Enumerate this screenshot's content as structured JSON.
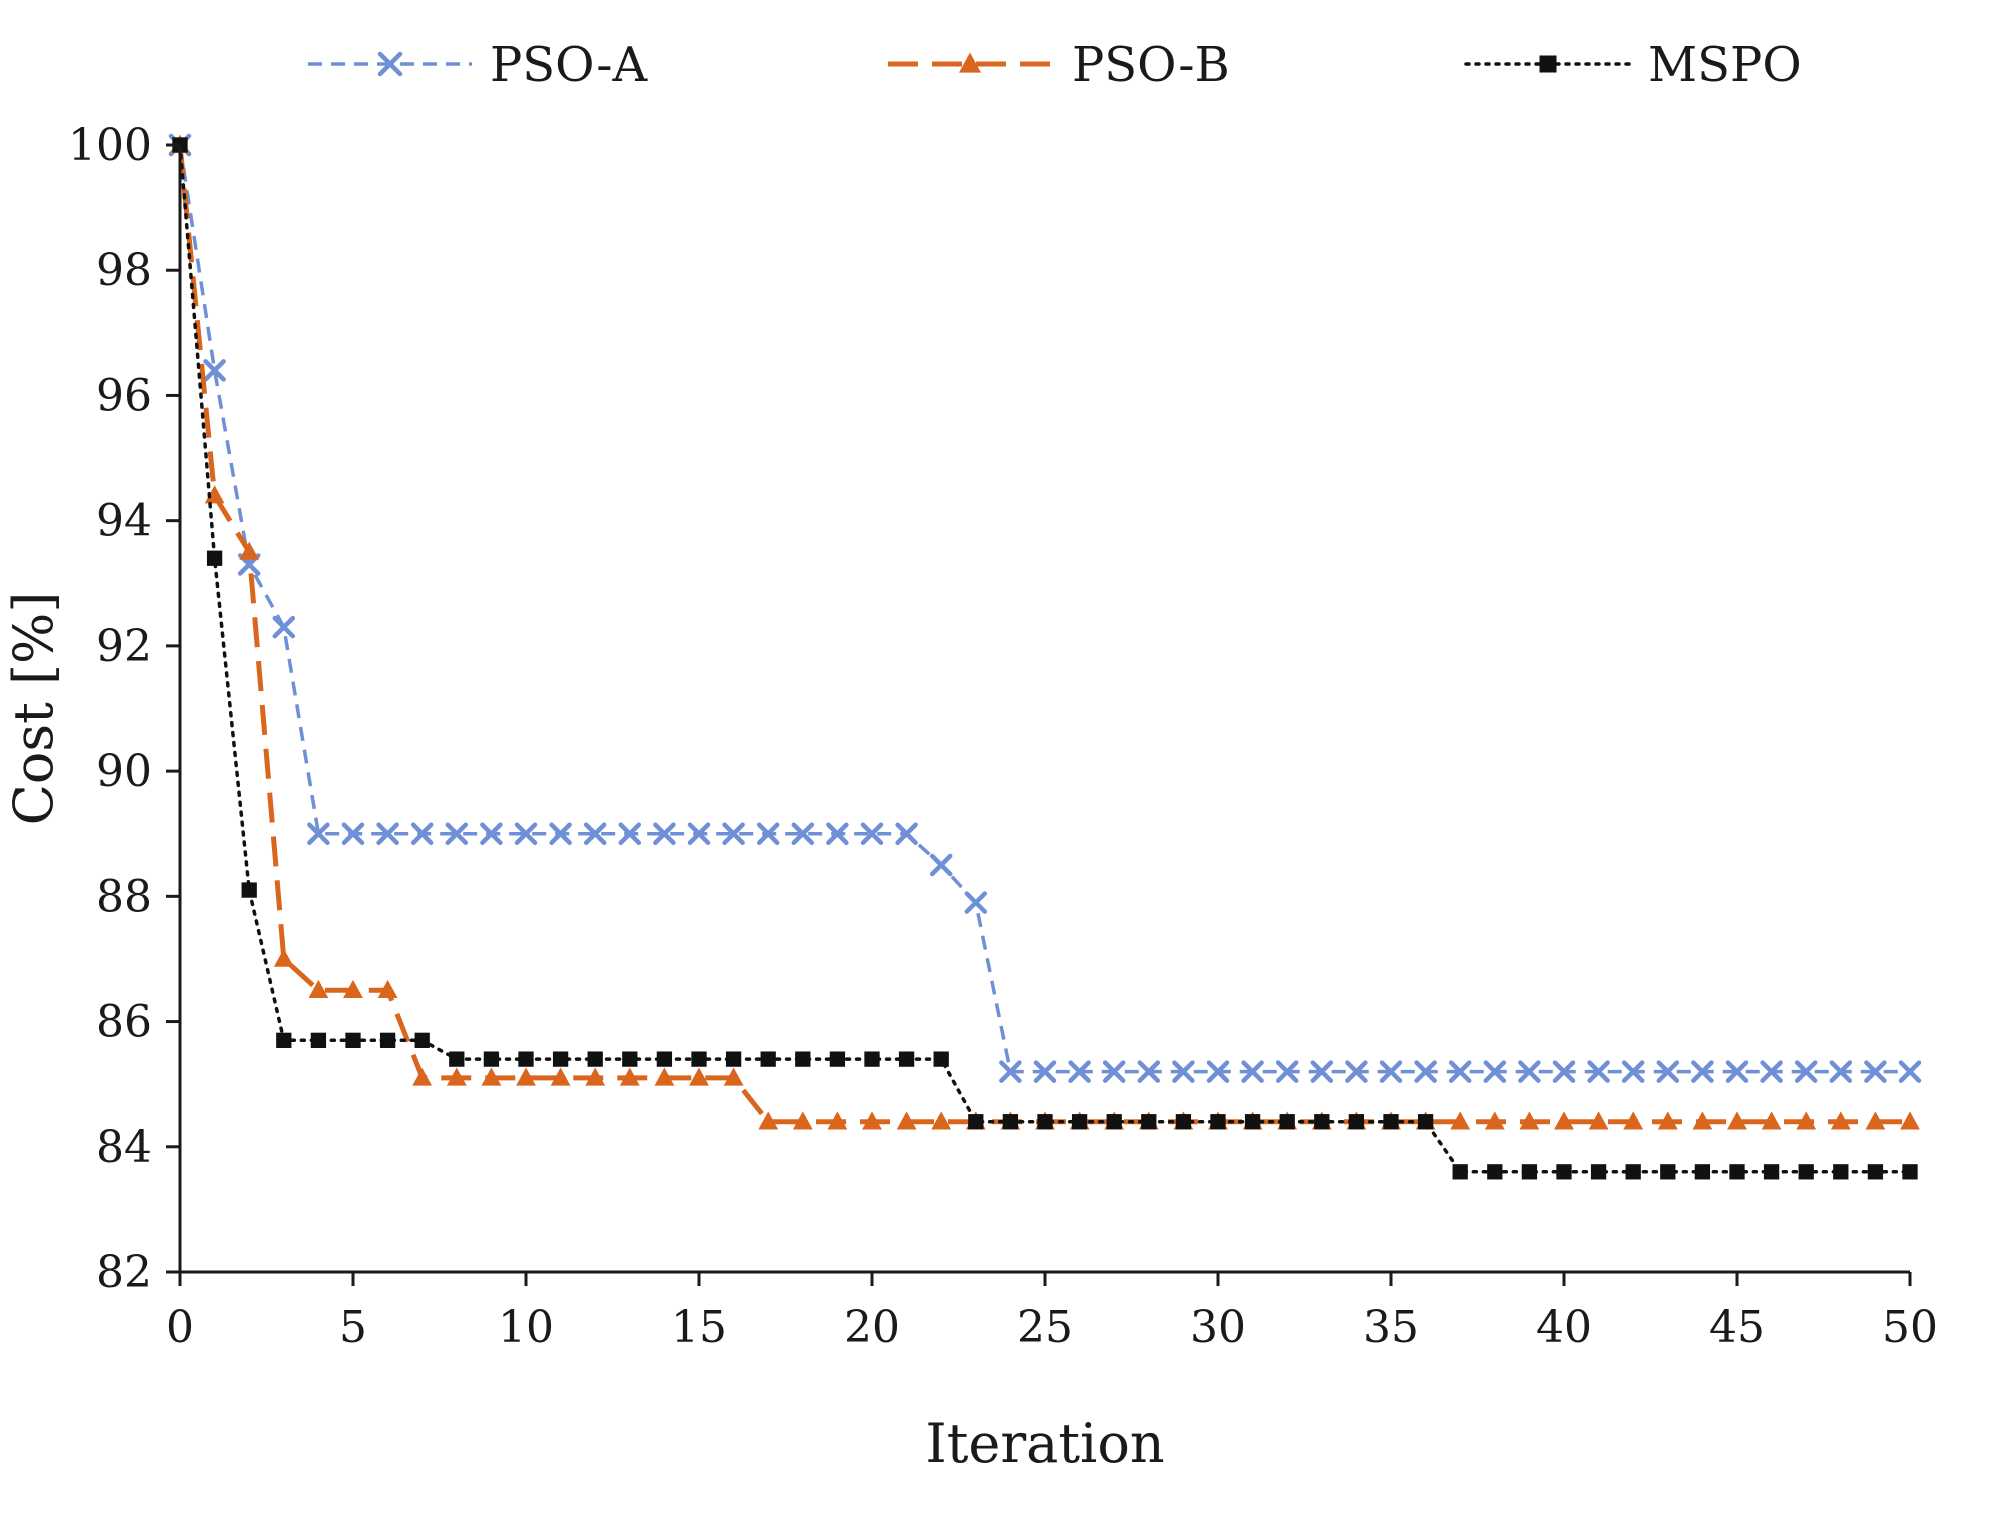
{
  "chart_data": {
    "type": "line",
    "xlabel": "Iteration",
    "ylabel": "Cost [%]",
    "xlim": [
      0,
      50
    ],
    "ylim": [
      82,
      100
    ],
    "x_ticks": [
      0,
      5,
      10,
      15,
      20,
      25,
      30,
      35,
      40,
      45,
      50
    ],
    "y_ticks": [
      82,
      84,
      86,
      88,
      90,
      92,
      94,
      96,
      98,
      100
    ],
    "grid": false,
    "legend_position": "top",
    "x": [
      0,
      1,
      2,
      3,
      4,
      5,
      6,
      7,
      8,
      9,
      10,
      11,
      12,
      13,
      14,
      15,
      16,
      17,
      18,
      19,
      20,
      21,
      22,
      23,
      24,
      25,
      26,
      27,
      28,
      29,
      30,
      31,
      32,
      33,
      34,
      35,
      36,
      37,
      38,
      39,
      40,
      41,
      42,
      43,
      44,
      45,
      46,
      47,
      48,
      49,
      50
    ],
    "series": [
      {
        "name": "PSO-A",
        "color": "#6f8fd6",
        "line_style": "dashed-fine",
        "marker": "x-marker",
        "values": [
          100,
          96.4,
          93.3,
          92.3,
          89.0,
          89.0,
          89.0,
          89.0,
          89.0,
          89.0,
          89.0,
          89.0,
          89.0,
          89.0,
          89.0,
          89.0,
          89.0,
          89.0,
          89.0,
          89.0,
          89.0,
          89.0,
          88.5,
          87.9,
          85.2,
          85.2,
          85.2,
          85.2,
          85.2,
          85.2,
          85.2,
          85.2,
          85.2,
          85.2,
          85.2,
          85.2,
          85.2,
          85.2,
          85.2,
          85.2,
          85.2,
          85.2,
          85.2,
          85.2,
          85.2,
          85.2,
          85.2,
          85.2,
          85.2,
          85.2,
          85.2
        ]
      },
      {
        "name": "PSO-B",
        "color": "#d9661c",
        "line_style": "dashed-long",
        "marker": "triangle-marker",
        "values": [
          100,
          94.4,
          93.5,
          87.0,
          86.5,
          86.5,
          86.5,
          85.1,
          85.1,
          85.1,
          85.1,
          85.1,
          85.1,
          85.1,
          85.1,
          85.1,
          85.1,
          84.4,
          84.4,
          84.4,
          84.4,
          84.4,
          84.4,
          84.4,
          84.4,
          84.4,
          84.4,
          84.4,
          84.4,
          84.4,
          84.4,
          84.4,
          84.4,
          84.4,
          84.4,
          84.4,
          84.4,
          84.4,
          84.4,
          84.4,
          84.4,
          84.4,
          84.4,
          84.4,
          84.4,
          84.4,
          84.4,
          84.4,
          84.4,
          84.4,
          84.4
        ]
      },
      {
        "name": "MSPO",
        "color": "#111111",
        "line_style": "dotted",
        "marker": "square-marker",
        "values": [
          100,
          93.4,
          88.1,
          85.7,
          85.7,
          85.7,
          85.7,
          85.7,
          85.4,
          85.4,
          85.4,
          85.4,
          85.4,
          85.4,
          85.4,
          85.4,
          85.4,
          85.4,
          85.4,
          85.4,
          85.4,
          85.4,
          85.4,
          84.4,
          84.4,
          84.4,
          84.4,
          84.4,
          84.4,
          84.4,
          84.4,
          84.4,
          84.4,
          84.4,
          84.4,
          84.4,
          84.4,
          83.6,
          83.6,
          83.6,
          83.6,
          83.6,
          83.6,
          83.6,
          83.6,
          83.6,
          83.6,
          83.6,
          83.6,
          83.6,
          83.6
        ]
      }
    ]
  }
}
